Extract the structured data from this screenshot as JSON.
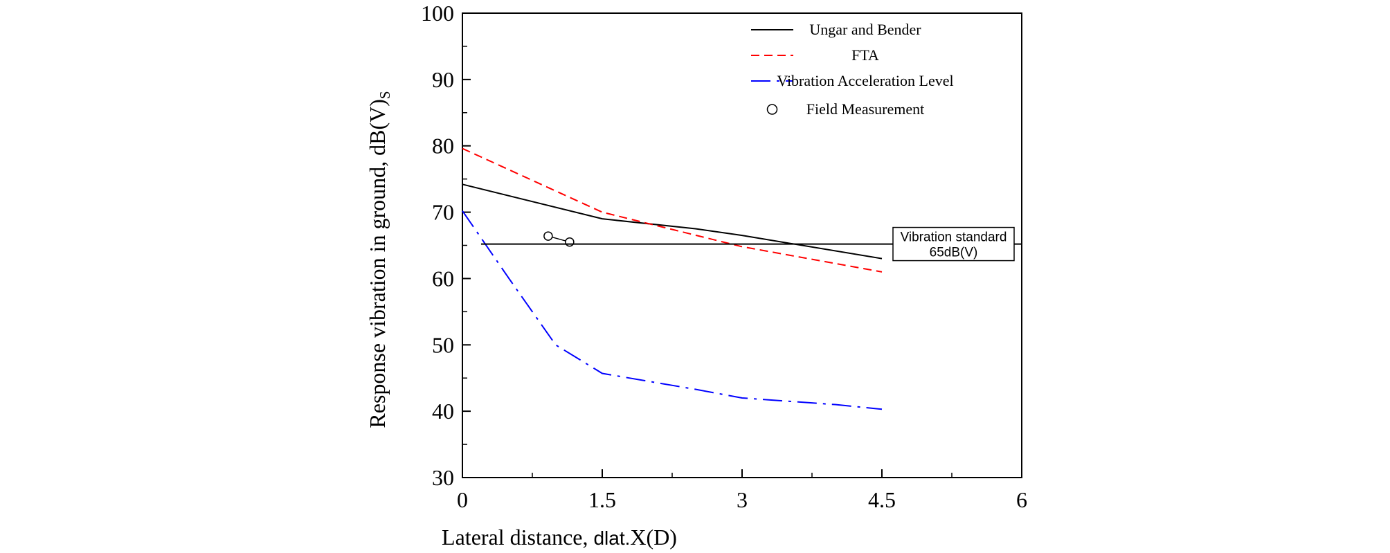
{
  "chart_data": {
    "type": "line",
    "title": "",
    "xlabel_main": "Lateral distance, ",
    "xlabel_small": "dlat.",
    "xlabel_end": "X(D)",
    "ylabel_main": "Response vibration in ground, dB(V)",
    "ylabel_sub": "S",
    "xlim": [
      0,
      6
    ],
    "ylim": [
      30,
      100
    ],
    "x_ticks": [
      0,
      1.5,
      3,
      4.5,
      6
    ],
    "x_tick_labels": [
      "0",
      "1.5",
      "3",
      "4.5",
      "6"
    ],
    "y_ticks": [
      30,
      40,
      50,
      60,
      70,
      80,
      90,
      100
    ],
    "y_tick_labels": [
      "30",
      "40",
      "50",
      "60",
      "70",
      "80",
      "90",
      "100"
    ],
    "y_minor_step": 5,
    "x_minor_step": 0.75,
    "series": [
      {
        "name": "Ungar and Bender",
        "style": "solid",
        "color": "#000000",
        "x": [
          0,
          1.5,
          2.5,
          3.0,
          4.5
        ],
        "y": [
          74.2,
          69.0,
          67.5,
          66.5,
          63.0
        ]
      },
      {
        "name": "FTA",
        "style": "dashed",
        "color": "#ff0000",
        "x": [
          0,
          1.5,
          3.0,
          4.5
        ],
        "y": [
          79.6,
          70.0,
          64.8,
          61.0
        ]
      },
      {
        "name": "Vibration Acceleration Level",
        "style": "dashdot",
        "color": "#0000ff",
        "x": [
          0,
          0.5,
          1.0,
          1.5,
          2.5,
          3.0,
          4.0,
          4.5
        ],
        "y": [
          70.2,
          60.0,
          50.0,
          45.7,
          43.3,
          42.0,
          41.0,
          40.3
        ]
      }
    ],
    "field_measurement": {
      "name": "Field Measurement",
      "x": [
        0.92,
        1.15
      ],
      "y": [
        66.4,
        65.5
      ]
    },
    "reference_line": {
      "value": 65.2,
      "x_start": 0.2,
      "label_line1": "Vibration standard",
      "label_line2": "65dB(V)"
    },
    "legend_position": "top-right"
  }
}
